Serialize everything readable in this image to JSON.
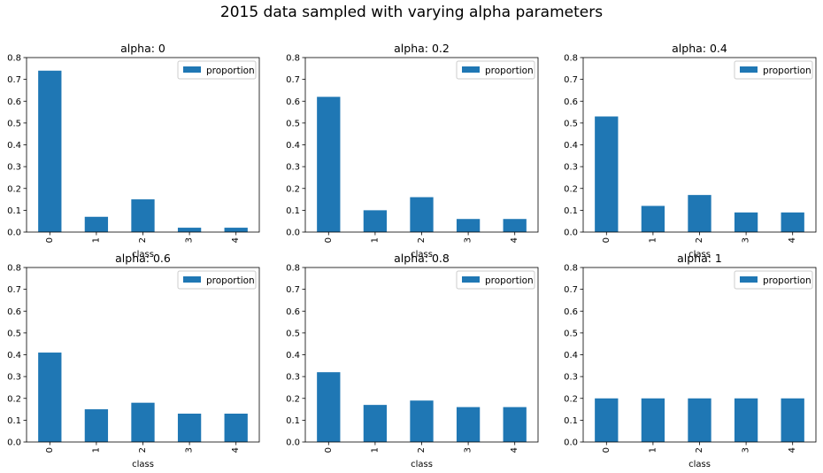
{
  "suptitle": "2015 data sampled with varying alpha parameters",
  "colors": {
    "bar": "#1f77b4",
    "axis": "#000000",
    "legend_border": "#cccccc"
  },
  "chart_data": [
    {
      "type": "bar",
      "title": "alpha: 0",
      "categories": [
        "0",
        "1",
        "2",
        "3",
        "4"
      ],
      "series": [
        {
          "name": "proportion",
          "values": [
            0.74,
            0.07,
            0.15,
            0.02,
            0.02
          ]
        }
      ],
      "xlabel": "class",
      "ylabel": "",
      "ylim": [
        0,
        0.8
      ],
      "yticks": [
        "0.0",
        "0.1",
        "0.2",
        "0.3",
        "0.4",
        "0.5",
        "0.6",
        "0.7",
        "0.8"
      ],
      "legend": "top-right",
      "grid": false
    },
    {
      "type": "bar",
      "title": "alpha: 0.2",
      "categories": [
        "0",
        "1",
        "2",
        "3",
        "4"
      ],
      "series": [
        {
          "name": "proportion",
          "values": [
            0.62,
            0.1,
            0.16,
            0.06,
            0.06
          ]
        }
      ],
      "xlabel": "class",
      "ylabel": "",
      "ylim": [
        0,
        0.8
      ],
      "yticks": [
        "0.0",
        "0.1",
        "0.2",
        "0.3",
        "0.4",
        "0.5",
        "0.6",
        "0.7",
        "0.8"
      ],
      "legend": "top-right",
      "grid": false
    },
    {
      "type": "bar",
      "title": "alpha: 0.4",
      "categories": [
        "0",
        "1",
        "2",
        "3",
        "4"
      ],
      "series": [
        {
          "name": "proportion",
          "values": [
            0.53,
            0.12,
            0.17,
            0.09,
            0.09
          ]
        }
      ],
      "xlabel": "class",
      "ylabel": "",
      "ylim": [
        0,
        0.8
      ],
      "yticks": [
        "0.0",
        "0.1",
        "0.2",
        "0.3",
        "0.4",
        "0.5",
        "0.6",
        "0.7",
        "0.8"
      ],
      "legend": "top-right",
      "grid": false
    },
    {
      "type": "bar",
      "title": "alpha: 0.6",
      "categories": [
        "0",
        "1",
        "2",
        "3",
        "4"
      ],
      "series": [
        {
          "name": "proportion",
          "values": [
            0.41,
            0.15,
            0.18,
            0.13,
            0.13
          ]
        }
      ],
      "xlabel": "class",
      "ylabel": "",
      "ylim": [
        0,
        0.8
      ],
      "yticks": [
        "0.0",
        "0.1",
        "0.2",
        "0.3",
        "0.4",
        "0.5",
        "0.6",
        "0.7",
        "0.8"
      ],
      "legend": "top-right",
      "grid": false
    },
    {
      "type": "bar",
      "title": "alpha: 0.8",
      "categories": [
        "0",
        "1",
        "2",
        "3",
        "4"
      ],
      "series": [
        {
          "name": "proportion",
          "values": [
            0.32,
            0.17,
            0.19,
            0.16,
            0.16
          ]
        }
      ],
      "xlabel": "class",
      "ylabel": "",
      "ylim": [
        0,
        0.8
      ],
      "yticks": [
        "0.0",
        "0.1",
        "0.2",
        "0.3",
        "0.4",
        "0.5",
        "0.6",
        "0.7",
        "0.8"
      ],
      "legend": "top-right",
      "grid": false
    },
    {
      "type": "bar",
      "title": "alpha: 1",
      "categories": [
        "0",
        "1",
        "2",
        "3",
        "4"
      ],
      "series": [
        {
          "name": "proportion",
          "values": [
            0.2,
            0.2,
            0.2,
            0.2,
            0.2
          ]
        }
      ],
      "xlabel": "class",
      "ylabel": "",
      "ylim": [
        0,
        0.8
      ],
      "yticks": [
        "0.0",
        "0.1",
        "0.2",
        "0.3",
        "0.4",
        "0.5",
        "0.6",
        "0.7",
        "0.8"
      ],
      "legend": "top-right",
      "grid": false
    }
  ]
}
